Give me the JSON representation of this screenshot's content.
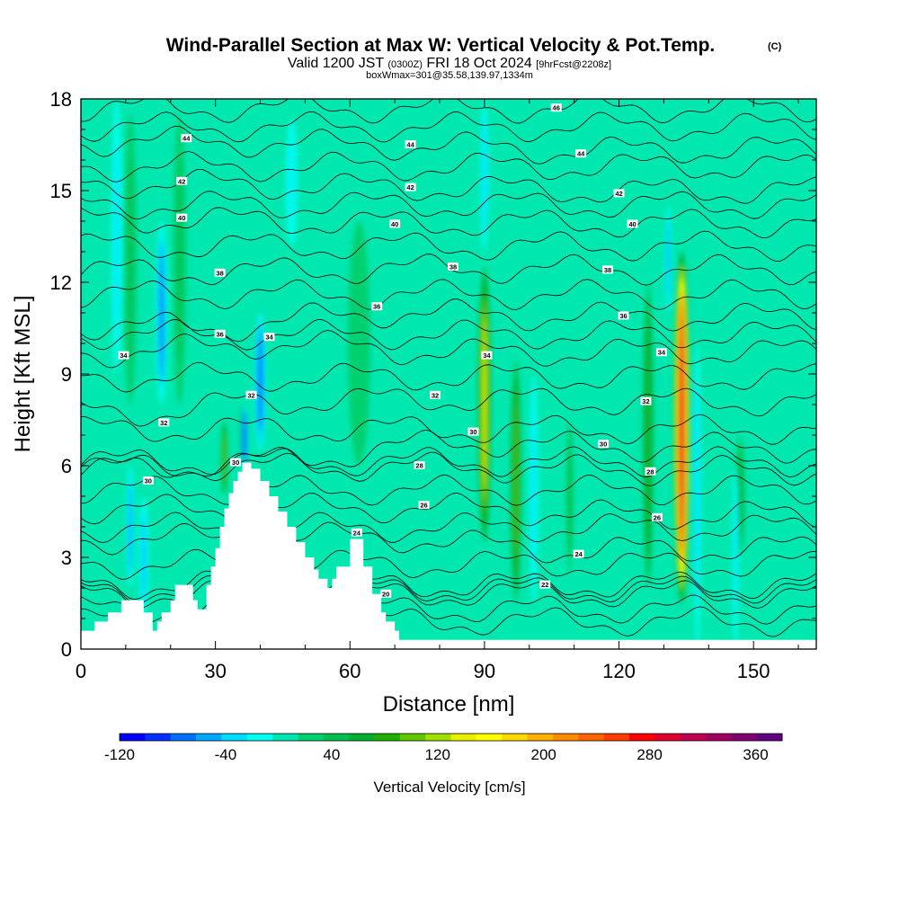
{
  "chart_data": {
    "type": "heatmap",
    "title": "Wind-Parallel Section at Max W: Vertical Velocity & Pot.Temp.",
    "title_mark": "(C)",
    "subtitle": {
      "valid_prefix": "Valid 1200 JST",
      "utc": "(0300Z)",
      "date": "FRI 18 Oct 2024",
      "forecast": "[9hrFcst@2208z]"
    },
    "box_line": "boxWmax=301@35.58,139.97,1334m",
    "xlabel": "Distance [nm]",
    "ylabel": "Height [Kft MSL]",
    "xlim": [
      0,
      164
    ],
    "ylim": [
      0,
      18
    ],
    "x_ticks": [
      0,
      30,
      60,
      90,
      120,
      150
    ],
    "y_ticks": [
      0,
      3,
      6,
      9,
      12,
      15,
      18
    ],
    "colorbar": {
      "label": "Vertical Velocity [cm/s]",
      "range": [
        -120,
        380
      ],
      "ticks": [
        -120,
        -40,
        40,
        120,
        200,
        280,
        360
      ],
      "colors": [
        "#0000ff",
        "#0030ff",
        "#0070ff",
        "#00a8ff",
        "#00ddff",
        "#00ffee",
        "#00e8b0",
        "#00d070",
        "#00c050",
        "#00b030",
        "#20b000",
        "#60c800",
        "#a0e000",
        "#e8f000",
        "#ffff00",
        "#ffd800",
        "#ffb000",
        "#ff8c00",
        "#ff6400",
        "#ff3c00",
        "#ff0000",
        "#e00030",
        "#c00050",
        "#a00060",
        "#800070",
        "#600080"
      ]
    },
    "terrain_profile": {
      "x": [
        0,
        3,
        6,
        9,
        12,
        14,
        16,
        17,
        18,
        20,
        21,
        23,
        25,
        26,
        27,
        28,
        29,
        30,
        31,
        32,
        33,
        34,
        35,
        36,
        37,
        38,
        40,
        42,
        44,
        46,
        48,
        50,
        52,
        53,
        55,
        56,
        57,
        60,
        61,
        63,
        65,
        67,
        68,
        70,
        71,
        164
      ],
      "height": [
        0.6,
        0.9,
        1.2,
        1.6,
        1.6,
        1.2,
        0.6,
        0.9,
        1.2,
        1.6,
        2.1,
        2.1,
        1.6,
        1.3,
        1.3,
        2.1,
        2.7,
        3.3,
        4.0,
        4.6,
        5.1,
        5.5,
        5.8,
        6.1,
        6.1,
        5.9,
        5.5,
        5.0,
        4.5,
        4.0,
        3.5,
        3.0,
        2.6,
        2.3,
        2.0,
        2.3,
        2.7,
        3.6,
        3.6,
        2.7,
        1.8,
        1.2,
        0.9,
        0.6,
        0.3,
        0.3
      ]
    },
    "theta_contours": {
      "units": "C",
      "labels": [
        {
          "text": "46",
          "x": 106,
          "y": 17.7
        },
        {
          "text": "44",
          "x": 23.5,
          "y": 16.7
        },
        {
          "text": "44",
          "x": 73.5,
          "y": 16.5
        },
        {
          "text": "44",
          "x": 111.5,
          "y": 16.2
        },
        {
          "text": "42",
          "x": 22.5,
          "y": 15.3
        },
        {
          "text": "42",
          "x": 73.5,
          "y": 15.1
        },
        {
          "text": "42",
          "x": 120,
          "y": 14.9
        },
        {
          "text": "40",
          "x": 22.5,
          "y": 14.1
        },
        {
          "text": "40",
          "x": 70,
          "y": 13.9
        },
        {
          "text": "40",
          "x": 123,
          "y": 13.9
        },
        {
          "text": "38",
          "x": 31,
          "y": 12.3
        },
        {
          "text": "38",
          "x": 83,
          "y": 12.5
        },
        {
          "text": "38",
          "x": 117.5,
          "y": 12.4
        },
        {
          "text": "36",
          "x": 66,
          "y": 11.2
        },
        {
          "text": "36",
          "x": 31,
          "y": 10.3
        },
        {
          "text": "36",
          "x": 121,
          "y": 10.9
        },
        {
          "text": "34",
          "x": 9.5,
          "y": 9.6
        },
        {
          "text": "34",
          "x": 42,
          "y": 10.2
        },
        {
          "text": "34",
          "x": 90.5,
          "y": 9.6
        },
        {
          "text": "34",
          "x": 129.5,
          "y": 9.7
        },
        {
          "text": "32",
          "x": 38,
          "y": 8.3
        },
        {
          "text": "32",
          "x": 79,
          "y": 8.3
        },
        {
          "text": "32",
          "x": 126,
          "y": 8.1
        },
        {
          "text": "32",
          "x": 18.5,
          "y": 7.4
        },
        {
          "text": "30",
          "x": 87.5,
          "y": 7.1
        },
        {
          "text": "30",
          "x": 116.5,
          "y": 6.7
        },
        {
          "text": "30",
          "x": 34.5,
          "y": 6.1
        },
        {
          "text": "30",
          "x": 15,
          "y": 5.5
        },
        {
          "text": "28",
          "x": 75.5,
          "y": 6.0
        },
        {
          "text": "28",
          "x": 127,
          "y": 5.8
        },
        {
          "text": "26",
          "x": 76.5,
          "y": 4.7
        },
        {
          "text": "26",
          "x": 128.5,
          "y": 4.3
        },
        {
          "text": "24",
          "x": 61.5,
          "y": 3.8
        },
        {
          "text": "24",
          "x": 111,
          "y": 3.1
        },
        {
          "text": "22",
          "x": 103.5,
          "y": 2.1
        },
        {
          "text": "20",
          "x": 68,
          "y": 1.8
        }
      ]
    },
    "updraft_cores": [
      {
        "x": 90,
        "width": 3.0,
        "bottom": 3.5,
        "top": 12.5,
        "peak_cms": 130
      },
      {
        "x": 97,
        "width": 2.6,
        "bottom": 1.5,
        "top": 9.5,
        "peak_cms": 100
      },
      {
        "x": 109,
        "width": 1.6,
        "bottom": 2.5,
        "top": 7.5,
        "peak_cms": 50
      },
      {
        "x": 126.5,
        "width": 2.6,
        "bottom": 2.0,
        "top": 12.0,
        "peak_cms": 80
      },
      {
        "x": 134,
        "width": 3.6,
        "bottom": 1.5,
        "top": 13.0,
        "peak_cms": 301
      },
      {
        "x": 147,
        "width": 2.2,
        "bottom": 3.0,
        "top": 7.0,
        "peak_cms": 60
      },
      {
        "x": 32,
        "width": 1.6,
        "bottom": 5.0,
        "top": 7.5,
        "peak_cms": 100
      },
      {
        "x": 36,
        "width": 1.2,
        "bottom": 6.0,
        "top": 8.0,
        "peak_cms": 70
      },
      {
        "x": 11,
        "width": 3.0,
        "bottom": 8.0,
        "top": 17.5,
        "peak_cms": 40
      },
      {
        "x": 22,
        "width": 3.0,
        "bottom": 8.0,
        "top": 17.5,
        "peak_cms": 40
      },
      {
        "x": 62,
        "width": 5.0,
        "bottom": 6.0,
        "top": 14.0,
        "peak_cms": 25
      }
    ],
    "downdraft_cores": [
      {
        "x": 18,
        "width": 2.6,
        "bottom": 8.0,
        "top": 14.0,
        "peak_cms": -70
      },
      {
        "x": 40,
        "width": 2.6,
        "bottom": 6.5,
        "top": 11.0,
        "peak_cms": -80
      },
      {
        "x": 36.5,
        "width": 1.4,
        "bottom": 5.8,
        "top": 8.0,
        "peak_cms": -120
      },
      {
        "x": 11,
        "width": 1.8,
        "bottom": 2.0,
        "top": 6.0,
        "peak_cms": -60
      },
      {
        "x": 14,
        "width": 2.2,
        "bottom": 1.0,
        "top": 5.0,
        "peak_cms": -45
      },
      {
        "x": 90,
        "width": 1.8,
        "bottom": 13.0,
        "top": 18.0,
        "peak_cms": -40
      },
      {
        "x": 101,
        "width": 2.0,
        "bottom": 1.5,
        "top": 9.0,
        "peak_cms": -30
      },
      {
        "x": 137.5,
        "width": 1.6,
        "bottom": 0.0,
        "top": 10.0,
        "peak_cms": -40
      },
      {
        "x": 131,
        "width": 1.4,
        "bottom": 11.0,
        "top": 14.5,
        "peak_cms": -50
      },
      {
        "x": 146,
        "width": 1.4,
        "bottom": 0.0,
        "top": 6.0,
        "peak_cms": -30
      },
      {
        "x": 8,
        "width": 2.4,
        "bottom": 9.0,
        "top": 18.0,
        "peak_cms": -30
      },
      {
        "x": 47,
        "width": 3.0,
        "bottom": 13.0,
        "top": 17.5,
        "peak_cms": -25
      }
    ]
  }
}
